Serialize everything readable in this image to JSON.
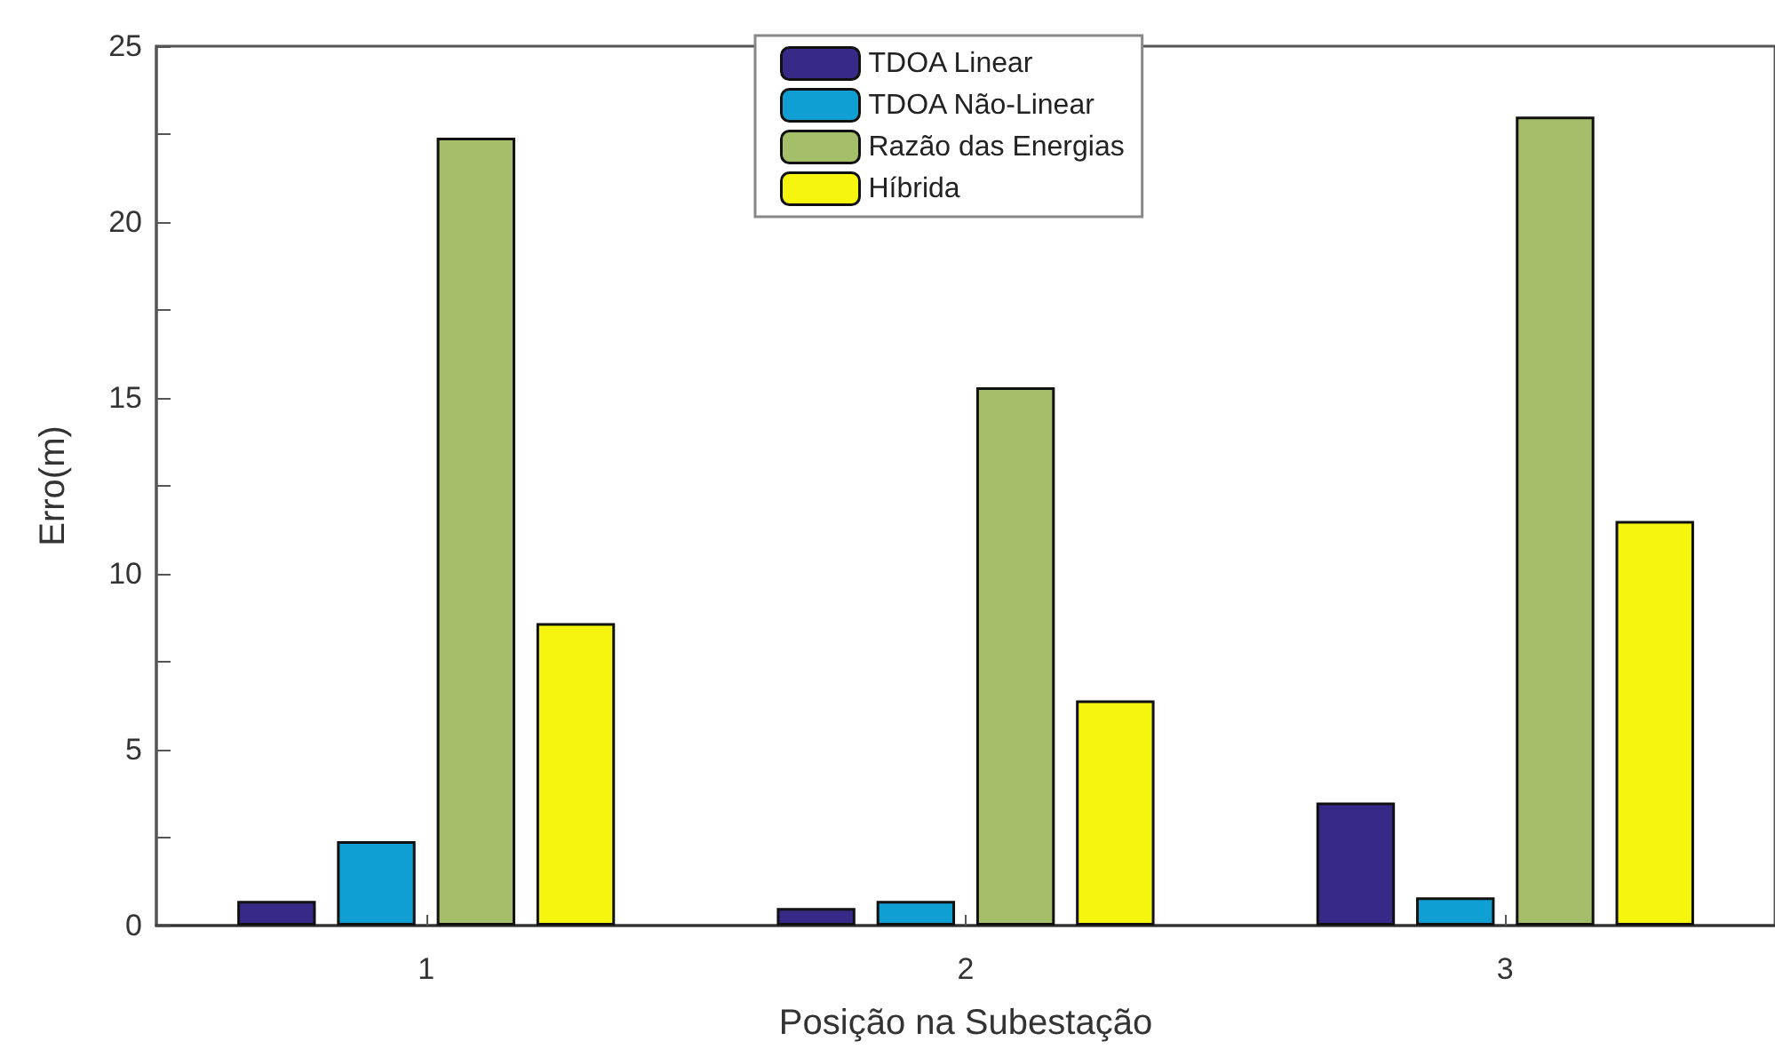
{
  "chart_data": {
    "type": "bar",
    "xlabel": "Posição na Subestação",
    "ylabel": "Erro(m)",
    "categories": [
      "1",
      "2",
      "3"
    ],
    "series": [
      {
        "name": "TDOA Linear",
        "color": "#352a87",
        "values": [
          0.7,
          0.5,
          3.5
        ]
      },
      {
        "name": "TDOA Não-Linear",
        "color": "#0f9fd3",
        "values": [
          2.4,
          0.7,
          0.8
        ]
      },
      {
        "name": "Razão das Energias",
        "color": "#a5be6a",
        "values": [
          22.4,
          15.3,
          23.0
        ]
      },
      {
        "name": "Híbrida",
        "color": "#f5f50e",
        "values": [
          8.6,
          6.4,
          11.5
        ]
      }
    ],
    "ylim": [
      0,
      25
    ],
    "yticks": [
      0,
      {
        "value": 2.5,
        "label": null
      },
      5,
      {
        "value": 7.5,
        "label": null
      },
      10,
      {
        "value": 12.5,
        "label": null
      },
      15,
      {
        "value": 17.5,
        "label": null
      },
      20,
      {
        "value": 22.5,
        "label": null
      },
      25
    ],
    "legend": "top",
    "grid": false
  }
}
